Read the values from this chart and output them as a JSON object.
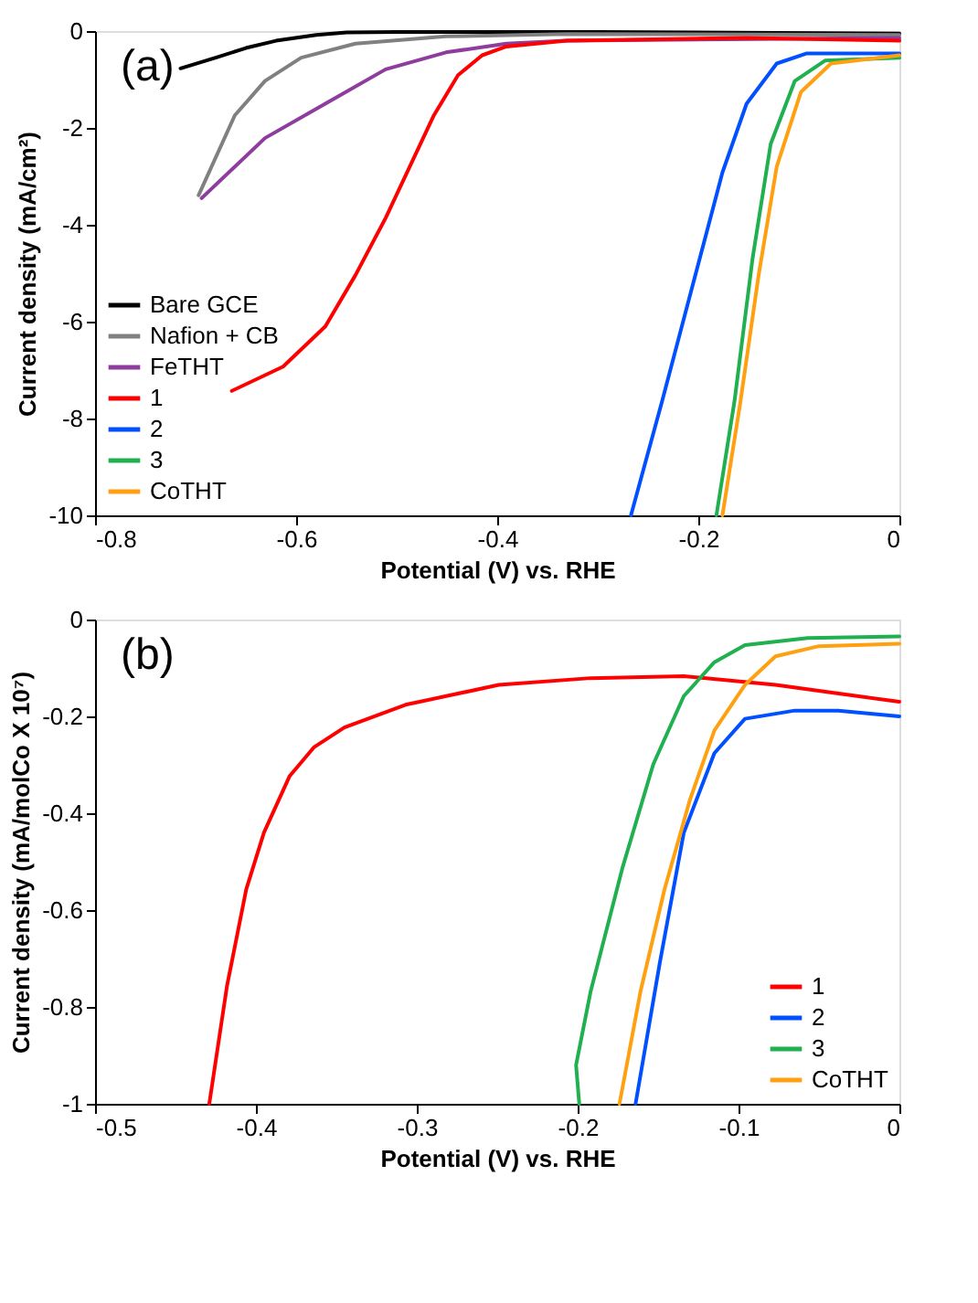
{
  "chart_data": [
    {
      "type": "line",
      "xlabel": "Potential (V) vs. RHE",
      "ylabel": "Current density (mA/cm²)",
      "annotations": [
        "(a)"
      ],
      "xlim": [
        -0.8,
        0
      ],
      "ylim": [
        -10,
        0
      ],
      "xticks": [
        -0.8,
        -0.6,
        -0.4,
        -0.2,
        0
      ],
      "yticks": [
        -10,
        -8,
        -6,
        -4,
        -2,
        0
      ],
      "grid": false,
      "legend": "bottom left",
      "line_style": "solid",
      "marker": "none",
      "series": [
        {
          "name": "Bare GCE",
          "color": "#000000",
          "x": [
            -0.715,
            -0.68,
            -0.65,
            -0.62,
            -0.58,
            -0.55,
            -0.5,
            -0.3,
            0
          ],
          "values": [
            -0.77,
            -0.55,
            -0.35,
            -0.2,
            -0.08,
            -0.03,
            -0.02,
            -0.02,
            -0.05
          ]
        },
        {
          "name": "Nafion + CB",
          "color": "#808080",
          "x": [
            -0.697,
            -0.661,
            -0.631,
            -0.595,
            -0.541,
            -0.451,
            -0.331,
            0
          ],
          "values": [
            -3.39,
            -1.74,
            -1.03,
            -0.55,
            -0.26,
            -0.11,
            -0.06,
            -0.08
          ]
        },
        {
          "name": "FeTHT",
          "color": "#8e3d9e",
          "x": [
            -0.694,
            -0.631,
            -0.571,
            -0.511,
            -0.451,
            -0.391,
            -0.331,
            0
          ],
          "values": [
            -3.45,
            -2.21,
            -1.5,
            -0.79,
            -0.44,
            -0.26,
            -0.2,
            -0.14
          ]
        },
        {
          "name": "1",
          "color": "#ff0000",
          "x": [
            -0.664,
            -0.613,
            -0.571,
            -0.541,
            -0.511,
            -0.487,
            -0.463,
            -0.439,
            -0.415,
            -0.391,
            -0.331,
            -0.152,
            0
          ],
          "values": [
            -7.43,
            -6.93,
            -6.1,
            -5.04,
            -3.86,
            -2.8,
            -1.74,
            -0.91,
            -0.5,
            -0.32,
            -0.2,
            -0.14,
            -0.2
          ]
        },
        {
          "name": "2",
          "color": "#0050ff",
          "x": [
            -0.267,
            -0.236,
            -0.206,
            -0.176,
            -0.152,
            -0.122,
            -0.092,
            0
          ],
          "values": [
            -10,
            -7.64,
            -5.28,
            -2.92,
            -1.5,
            -0.67,
            -0.46,
            -0.46
          ]
        },
        {
          "name": "3",
          "color": "#20b050",
          "x": [
            -0.182,
            -0.164,
            -0.146,
            -0.128,
            -0.104,
            -0.074,
            0
          ],
          "values": [
            -10,
            -7.64,
            -4.69,
            -2.33,
            -1.03,
            -0.61,
            -0.55
          ]
        },
        {
          "name": "CoTHT",
          "color": "#ffa010",
          "x": [
            -0.176,
            -0.158,
            -0.14,
            -0.122,
            -0.098,
            -0.068,
            0
          ],
          "values": [
            -10,
            -7.64,
            -5.04,
            -2.8,
            -1.26,
            -0.67,
            -0.5
          ]
        }
      ]
    },
    {
      "type": "line",
      "xlabel": "Potential (V) vs. RHE",
      "ylabel": "Current density (mA/molCo X 10⁷)",
      "annotations": [
        "(b)"
      ],
      "xlim": [
        -0.5,
        0
      ],
      "ylim": [
        -1,
        0
      ],
      "xticks": [
        -0.5,
        -0.4,
        -0.3,
        -0.2,
        -0.1,
        0
      ],
      "yticks": [
        -1,
        -0.8,
        -0.6,
        -0.4,
        -0.2,
        0
      ],
      "grid": false,
      "legend": "bottom right",
      "line_style": "solid",
      "marker": "none",
      "series": [
        {
          "name": "1",
          "color": "#ff0000",
          "x": [
            -0.429,
            -0.418,
            -0.406,
            -0.395,
            -0.379,
            -0.364,
            -0.345,
            -0.307,
            -0.249,
            -0.192,
            -0.134,
            -0.077,
            0
          ],
          "values": [
            -1,
            -0.757,
            -0.557,
            -0.44,
            -0.323,
            -0.264,
            -0.223,
            -0.176,
            -0.135,
            -0.121,
            -0.117,
            -0.135,
            -0.17
          ]
        },
        {
          "name": "2",
          "color": "#0050ff",
          "x": [
            -0.164,
            -0.149,
            -0.134,
            -0.115,
            -0.096,
            -0.065,
            -0.038,
            0
          ],
          "values": [
            -1,
            -0.71,
            -0.44,
            -0.276,
            -0.205,
            -0.188,
            -0.188,
            -0.2
          ]
        },
        {
          "name": "3",
          "color": "#20b050",
          "x": [
            -0.199,
            -0.201,
            -0.192,
            -0.172,
            -0.153,
            -0.134,
            -0.115,
            -0.096,
            -0.057,
            0
          ],
          "values": [
            -1,
            -0.92,
            -0.769,
            -0.511,
            -0.299,
            -0.158,
            -0.088,
            -0.053,
            -0.038,
            -0.035
          ]
        },
        {
          "name": "CoTHT",
          "color": "#ffa010",
          "x": [
            -0.174,
            -0.161,
            -0.146,
            -0.13,
            -0.115,
            -0.096,
            -0.077,
            -0.05,
            0
          ],
          "values": [
            -1,
            -0.769,
            -0.557,
            -0.37,
            -0.229,
            -0.135,
            -0.076,
            -0.055,
            -0.05
          ]
        }
      ]
    }
  ]
}
